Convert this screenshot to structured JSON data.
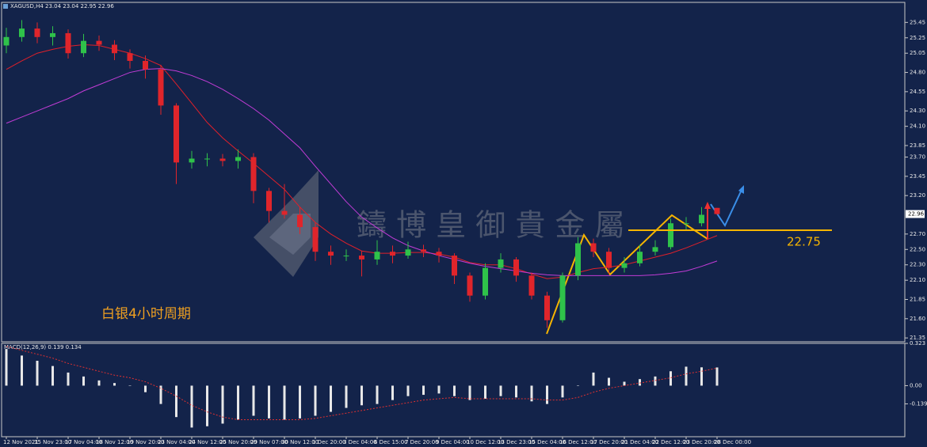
{
  "chart_data": [
    {
      "type": "candlestick",
      "title": "XAGUSD,H4 23.04 23.04 22.95 22.96",
      "x": [
        "12 Nov 2021",
        null,
        "15 Nov 23:00",
        null,
        "17 Nov 04:00",
        null,
        "18 Nov 12:00",
        null,
        "19 Nov 20:00",
        null,
        "23 Nov 04:00",
        null,
        "24 Nov 12:00",
        null,
        "25 Nov 20:00",
        null,
        "29 Nov 07:00",
        null,
        "30 Nov 12:00",
        null,
        "1 Dec 20:00",
        null,
        "3 Dec 04:00",
        null,
        "6 Dec 15:00",
        null,
        "7 Dec 20:00",
        null,
        "9 Dec 04:00",
        null,
        "10 Dec 12:00",
        null,
        "13 Dec 23:00",
        null,
        "15 Dec 04:00",
        null,
        "16 Dec 12:00",
        null,
        "17 Dec 20:00",
        null,
        "21 Dec 04:00",
        null,
        "22 Dec 12:00",
        null,
        "23 Dec 20:00",
        null,
        "28 Dec 00:00"
      ],
      "open": [
        25.15,
        25.26,
        25.37,
        25.26,
        25.31,
        25.05,
        25.21,
        25.16,
        25.05,
        24.95,
        24.84,
        24.37,
        23.63,
        23.68,
        23.68,
        23.65,
        23.7,
        23.26,
        23.0,
        22.95,
        22.79,
        22.47,
        22.42,
        22.42,
        22.37,
        22.47,
        22.42,
        22.5,
        22.47,
        22.42,
        22.16,
        21.9,
        22.26,
        22.37,
        22.16,
        21.9,
        21.58,
        22.16,
        22.58,
        22.47,
        22.26,
        22.32,
        22.47,
        22.53,
        22.84,
        22.84,
        23.04
      ],
      "high": [
        25.38,
        25.48,
        25.45,
        25.4,
        25.36,
        25.3,
        25.28,
        25.22,
        25.1,
        25.02,
        24.9,
        24.4,
        23.78,
        23.75,
        23.74,
        23.8,
        23.75,
        23.3,
        23.35,
        23.05,
        22.85,
        22.55,
        22.5,
        22.48,
        22.62,
        22.55,
        22.6,
        22.56,
        22.52,
        22.45,
        22.2,
        22.32,
        22.45,
        22.4,
        22.2,
        21.95,
        22.2,
        22.66,
        22.64,
        22.52,
        22.4,
        22.56,
        22.62,
        22.9,
        22.92,
        23.05,
        23.04
      ],
      "low": [
        25.05,
        25.2,
        25.18,
        25.15,
        24.98,
        25.0,
        25.08,
        24.96,
        24.85,
        24.72,
        24.25,
        23.35,
        23.55,
        23.58,
        23.58,
        23.55,
        23.1,
        22.85,
        22.9,
        22.7,
        22.35,
        22.3,
        22.35,
        22.15,
        22.3,
        22.32,
        22.38,
        22.4,
        22.33,
        22.05,
        21.82,
        21.85,
        22.2,
        22.08,
        21.85,
        21.48,
        21.55,
        22.1,
        22.4,
        22.18,
        22.2,
        22.28,
        22.42,
        22.5,
        22.76,
        22.8,
        22.95
      ],
      "close": [
        25.26,
        25.37,
        25.26,
        25.31,
        25.05,
        25.21,
        25.16,
        25.05,
        24.95,
        24.84,
        24.37,
        23.63,
        23.68,
        23.68,
        23.65,
        23.7,
        23.26,
        23.0,
        22.95,
        22.79,
        22.47,
        22.42,
        22.42,
        22.37,
        22.47,
        22.42,
        22.5,
        22.47,
        22.42,
        22.16,
        21.9,
        22.26,
        22.37,
        22.16,
        21.9,
        21.58,
        22.16,
        22.58,
        22.47,
        22.26,
        22.32,
        22.47,
        22.53,
        22.84,
        22.84,
        22.95,
        22.96
      ],
      "up_color": "#2fc24a",
      "down_color": "#e0252b",
      "overlays": [
        {
          "color": "#e0202a",
          "values": [
            24.84,
            24.95,
            25.05,
            25.1,
            25.14,
            25.16,
            25.15,
            25.1,
            25.05,
            24.98,
            24.89,
            24.65,
            24.4,
            24.15,
            23.95,
            23.78,
            23.62,
            23.45,
            23.28,
            23.05,
            22.85,
            22.7,
            22.58,
            22.48,
            22.45,
            22.45,
            22.46,
            22.46,
            22.44,
            22.4,
            22.33,
            22.3,
            22.3,
            22.25,
            22.18,
            22.12,
            22.14,
            22.2,
            22.25,
            22.27,
            22.3,
            22.35,
            22.4,
            22.45,
            22.52,
            22.6,
            22.68
          ]
        },
        {
          "color": "#c23cd6",
          "values": [
            24.14,
            24.22,
            24.3,
            24.38,
            24.46,
            24.56,
            24.64,
            24.72,
            24.8,
            24.84,
            24.85,
            24.82,
            24.76,
            24.68,
            24.58,
            24.46,
            24.33,
            24.18,
            24.0,
            23.82,
            23.58,
            23.35,
            23.12,
            22.92,
            22.78,
            22.65,
            22.55,
            22.48,
            22.42,
            22.37,
            22.32,
            22.28,
            22.25,
            22.22,
            22.19,
            22.17,
            22.16,
            22.16,
            22.16,
            22.16,
            22.16,
            22.16,
            22.17,
            22.19,
            22.22,
            22.28,
            22.35
          ]
        }
      ],
      "ylim": [
        21.3,
        25.7
      ],
      "yticks": [
        25.45,
        25.25,
        25.05,
        {
          "value": 24.8,
          "label": "24.80"
        },
        24.55,
        {
          "value": 24.3,
          "label": "24.30"
        },
        {
          "value": 24.1,
          "label": "24.10"
        },
        23.85,
        {
          "value": 23.7,
          "label": "23.70"
        },
        23.45,
        {
          "value": 23.2,
          "label": "23.20"
        },
        {
          "value": 22.7,
          "label": "22.70"
        },
        {
          "value": 22.5,
          "label": "22.50"
        },
        {
          "value": 22.3,
          "label": "22.30"
        },
        {
          "value": 22.1,
          "label": "22.10"
        },
        21.85,
        {
          "value": 21.6,
          "label": "21.60"
        },
        21.35
      ],
      "last_price": 22.96,
      "level": 22.75,
      "level_color": "#f5b400",
      "annotation": "白银4小时周期",
      "watermark": "鑄 博 皇 御 貴 金 屬"
    },
    {
      "type": "macd",
      "title": "MACD(12,26,9) 0.139 0.134",
      "values": [
        0.28,
        0.23,
        0.19,
        0.15,
        0.1,
        0.07,
        0.04,
        0.02,
        0.0,
        -0.05,
        -0.14,
        -0.24,
        -0.32,
        -0.31,
        -0.29,
        -0.26,
        -0.23,
        -0.25,
        -0.26,
        -0.25,
        -0.23,
        -0.2,
        -0.17,
        -0.15,
        -0.14,
        -0.11,
        -0.08,
        -0.07,
        -0.06,
        -0.08,
        -0.11,
        -0.1,
        -0.08,
        -0.09,
        -0.12,
        -0.14,
        -0.09,
        0.0,
        0.1,
        0.06,
        0.03,
        0.05,
        0.07,
        0.11,
        0.145,
        0.14,
        0.139
      ],
      "color": "#e8e8e8",
      "signal": {
        "color": "#e03030",
        "values": [
          0.3,
          0.27,
          0.24,
          0.21,
          0.17,
          0.14,
          0.11,
          0.08,
          0.06,
          0.03,
          -0.02,
          -0.08,
          -0.15,
          -0.2,
          -0.24,
          -0.26,
          -0.26,
          -0.26,
          -0.26,
          -0.26,
          -0.25,
          -0.23,
          -0.21,
          -0.19,
          -0.17,
          -0.15,
          -0.13,
          -0.11,
          -0.1,
          -0.09,
          -0.1,
          -0.1,
          -0.1,
          -0.1,
          -0.1,
          -0.11,
          -0.11,
          -0.09,
          -0.05,
          -0.02,
          0.0,
          0.02,
          0.04,
          0.06,
          0.09,
          0.11,
          0.134
        ]
      },
      "ylim": [
        -0.39,
        0.323
      ],
      "yticks": [
        0.323,
        {
          "value": 0,
          "label": "0.00"
        },
        -0.139
      ]
    }
  ]
}
